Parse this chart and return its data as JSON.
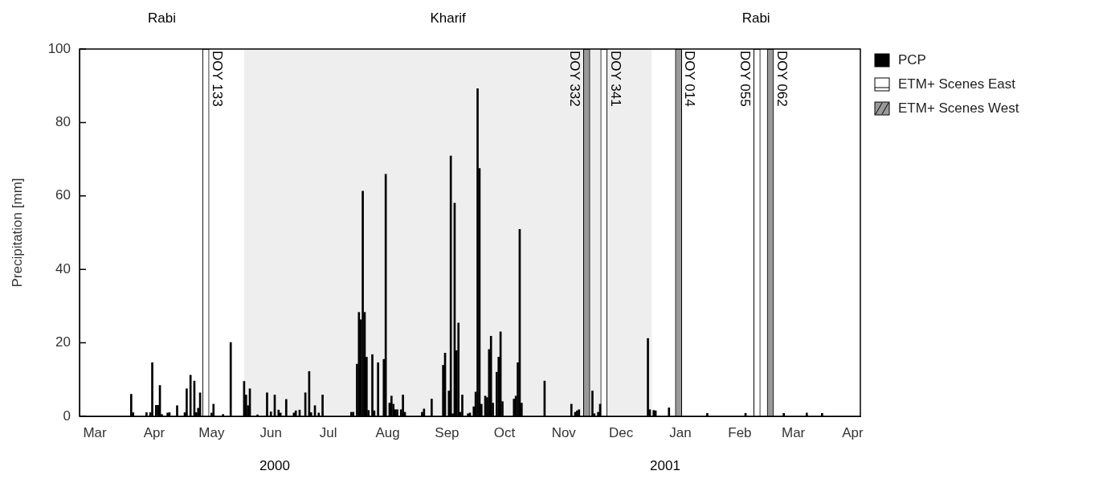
{
  "chart_data": {
    "type": "bar",
    "ylabel": "Precipitation [mm]",
    "xlim": [
      "2000-03-07",
      "2001-04-19"
    ],
    "xticks": [
      {
        "value": "2000-03-15",
        "label": "Mar"
      },
      {
        "value": "2000-04-15",
        "label": "Apr"
      },
      {
        "value": "2000-05-15",
        "label": "May"
      },
      {
        "value": "2000-06-15",
        "label": "Jun"
      },
      {
        "value": "2000-07-15",
        "label": "Jul"
      },
      {
        "value": "2000-08-15",
        "label": "Aug"
      },
      {
        "value": "2000-09-15",
        "label": "Sep"
      },
      {
        "value": "2000-10-15",
        "label": "Oct"
      },
      {
        "value": "2000-11-15",
        "label": "Nov"
      },
      {
        "value": "2000-12-15",
        "label": "Dec"
      },
      {
        "value": "2001-01-15",
        "label": "Jan"
      },
      {
        "value": "2001-02-15",
        "label": "Feb"
      },
      {
        "value": "2001-03-15",
        "label": "Mar"
      },
      {
        "value": "2001-04-15",
        "label": "Apr"
      }
    ],
    "ylim": [
      0,
      100
    ],
    "yticks": [
      0,
      20,
      40,
      60,
      80,
      100
    ],
    "legend": "top right",
    "series": [
      {
        "name": "PCP",
        "color": "#000000",
        "x": [
          "2000-04-03",
          "2000-04-04",
          "2000-04-11",
          "2000-04-13",
          "2000-04-14",
          "2000-04-16",
          "2000-04-17",
          "2000-04-18",
          "2000-04-19",
          "2000-04-22",
          "2000-04-23",
          "2000-04-27",
          "2000-05-01",
          "2000-05-02",
          "2000-05-04",
          "2000-05-06",
          "2000-05-07",
          "2000-05-08",
          "2000-05-09",
          "2000-05-15",
          "2000-05-16",
          "2000-05-21",
          "2000-05-25",
          "2000-05-30",
          "2000-06-01",
          "2000-06-02",
          "2000-06-03",
          "2000-06-04",
          "2000-06-07",
          "2000-06-08",
          "2000-06-13",
          "2000-06-15",
          "2000-06-17",
          "2000-06-19",
          "2000-06-20",
          "2000-06-23",
          "2000-06-27",
          "2000-06-28",
          "2000-06-30",
          "2000-07-03",
          "2000-07-05",
          "2000-07-06",
          "2000-07-08",
          "2000-07-10",
          "2000-07-12",
          "2000-07-13",
          "2000-07-27",
          "2000-07-28",
          "2000-07-30",
          "2000-07-31",
          "2000-08-01",
          "2000-08-02",
          "2000-08-03",
          "2000-08-04",
          "2000-08-05",
          "2000-08-07",
          "2000-08-08",
          "2000-08-10",
          "2000-08-13",
          "2000-08-14",
          "2000-08-16",
          "2000-08-17",
          "2000-08-18",
          "2000-08-19",
          "2000-08-20",
          "2000-08-22",
          "2000-08-23",
          "2000-08-24",
          "2000-09-02",
          "2000-09-03",
          "2000-09-07",
          "2000-09-13",
          "2000-09-14",
          "2000-09-16",
          "2000-09-17",
          "2000-09-18",
          "2000-09-19",
          "2000-09-20",
          "2000-09-21",
          "2000-09-22",
          "2000-09-23",
          "2000-09-26",
          "2000-09-27",
          "2000-09-29",
          "2000-09-30",
          "2000-10-01",
          "2000-10-02",
          "2000-10-03",
          "2000-10-05",
          "2000-10-06",
          "2000-10-07",
          "2000-10-08",
          "2000-10-09",
          "2000-10-11",
          "2000-10-12",
          "2000-10-13",
          "2000-10-14",
          "2000-10-20",
          "2000-10-21",
          "2000-10-22",
          "2000-10-23",
          "2000-10-24",
          "2000-11-05",
          "2000-11-19",
          "2000-11-21",
          "2000-11-22",
          "2000-11-23",
          "2000-11-30",
          "2000-12-01",
          "2000-12-03",
          "2000-12-04",
          "2000-12-29",
          "2000-12-30",
          "2001-01-01",
          "2001-01-02",
          "2001-01-09",
          "2001-01-29",
          "2001-02-18",
          "2001-03-10",
          "2001-03-22",
          "2001-03-30"
        ],
        "values": [
          6,
          1,
          1,
          1,
          14.6,
          3,
          3,
          8.4,
          0.5,
          0.9,
          1,
          2.9,
          1,
          7.5,
          11.2,
          9.6,
          1,
          2.2,
          6.4,
          0.9,
          3.3,
          0.5,
          20.1,
          null,
          9.5,
          5.8,
          2.9,
          7.5,
          null,
          0.4,
          6.4,
          1.2,
          5.8,
          1.7,
          0.9,
          4.6,
          0.9,
          1.5,
          1.7,
          6.4,
          12.2,
          1,
          2.9,
          0.9,
          5.8,
          null,
          1.1,
          1.1,
          14.2,
          28.3,
          26.3,
          61.3,
          28.3,
          16.1,
          1.6,
          16.8,
          1.5,
          14.6,
          15.5,
          65.9,
          3.6,
          5.5,
          3.3,
          1.8,
          1.8,
          1.8,
          5.8,
          1.1,
          1.1,
          2,
          4.7,
          13.9,
          17.2,
          6.9,
          70.9,
          0.7,
          58,
          17.9,
          25.4,
          1.1,
          5.8,
          0.7,
          0.9,
          2.6,
          6.6,
          89.2,
          67.5,
          3.3,
          5.5,
          5.1,
          18.2,
          21.8,
          3.6,
          12,
          16.1,
          23,
          4,
          4.7,
          5.5,
          14.6,
          50.9,
          3.6,
          9.6,
          3.3,
          1.1,
          1.5,
          1.8,
          6.9,
          0.7,
          1.1,
          3.3,
          21.2,
          1.8,
          1.6,
          1.5,
          2.3,
          0.8,
          0.8,
          0.8,
          0.9,
          0.8
        ]
      },
      {
        "name": "ETM+ Scenes East",
        "color": "#ffffff",
        "x": [
          "2000-05-12",
          "2000-12-06",
          "2001-02-24"
        ],
        "values": [
          100,
          100,
          100
        ],
        "value_labels": [
          "DOY 133",
          "DOY 341",
          "DOY 055"
        ]
      },
      {
        "name": "ETM+ Scenes West",
        "color": "#999999",
        "x": [
          "2000-11-27",
          "2001-01-14",
          "2001-03-03"
        ],
        "values": [
          100,
          100,
          100
        ],
        "value_labels": [
          "DOY 332",
          "DOY 014",
          "DOY 062"
        ]
      }
    ],
    "bands": [
      {
        "axis": "x",
        "from": "2000-06-01",
        "to": "2000-12-31",
        "label": "Kharif",
        "color": "#eeeeee"
      }
    ],
    "annotations": [
      "Rabi",
      "Rabi",
      "2000",
      "2001"
    ]
  }
}
